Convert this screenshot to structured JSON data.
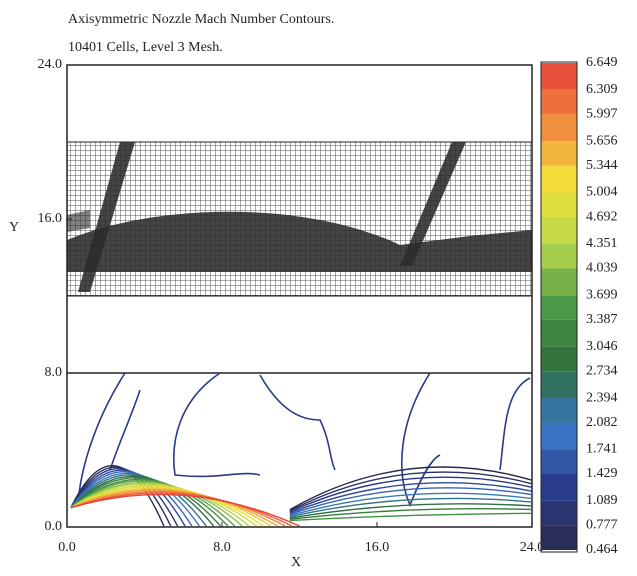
{
  "chart_data": {
    "type": "contour",
    "title": "Axisymmetric Nozzle Mach Number Contours.",
    "subtitle": "10401 Cells, Level 3 Mesh.",
    "x_label": "X",
    "y_label": "Y",
    "xlim": [
      0,
      24
    ],
    "ylim": [
      0,
      24
    ],
    "xticks": [
      {
        "value": 0,
        "label": "0.0"
      },
      {
        "value": 8,
        "label": "8.0"
      },
      {
        "value": 16,
        "label": "16.0"
      },
      {
        "value": 24,
        "label": "24.0"
      }
    ],
    "yticks": [
      {
        "value": 0,
        "label": "0.0"
      },
      {
        "value": 8,
        "label": "8.0"
      },
      {
        "value": 16,
        "label": "16.0"
      },
      {
        "value": 24,
        "label": "24.0"
      }
    ],
    "levels": [
      0.464,
      0.777,
      1.089,
      1.429,
      1.741,
      2.082,
      2.394,
      2.734,
      3.046,
      3.387,
      3.699,
      4.039,
      4.351,
      4.692,
      5.004,
      5.344,
      5.656,
      5.997,
      6.309,
      6.649
    ],
    "colormap": [
      "#2a2a4a",
      "#2a3a8a",
      "#3a7ac8",
      "#2e6e3a",
      "#4a9a48",
      "#b8d64a",
      "#f2e33a",
      "#f08a3c",
      "#e8413c"
    ]
  }
}
